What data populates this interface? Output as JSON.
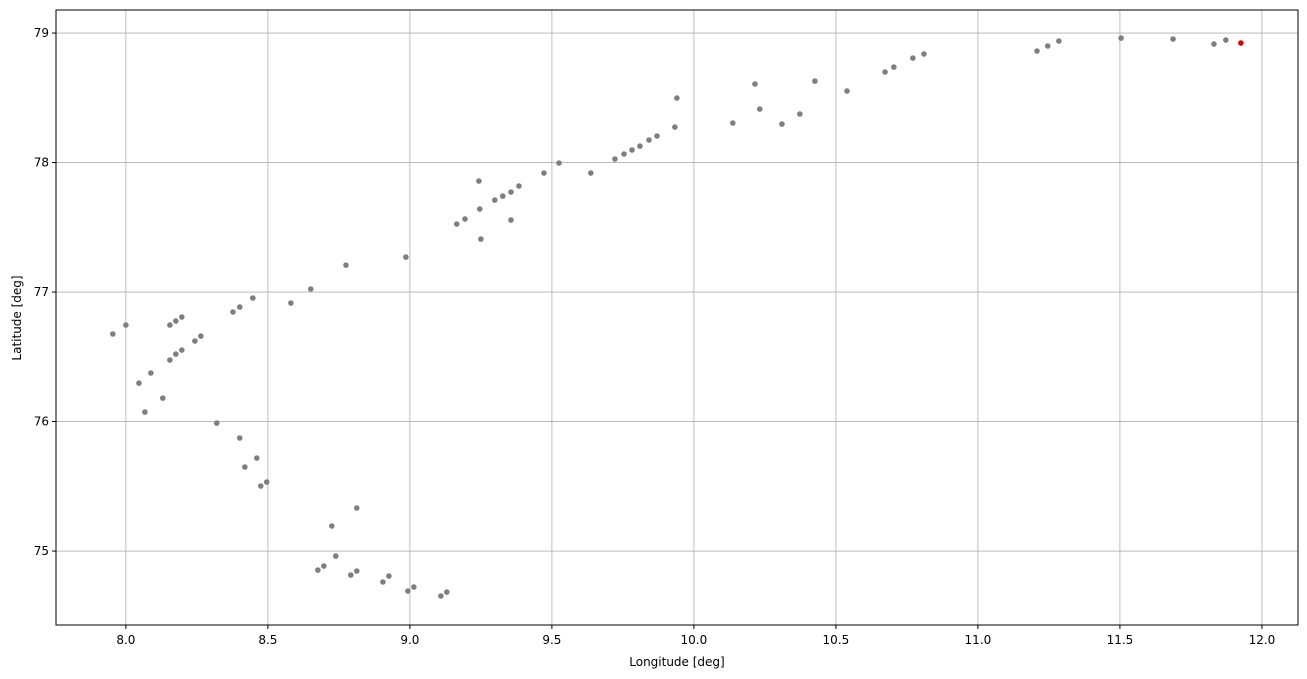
{
  "chart_data": {
    "type": "scatter",
    "xlabel": "Longitude [deg]",
    "ylabel": "Latitude [deg]",
    "xlim": [
      7.754,
      12.127
    ],
    "ylim": [
      74.429,
      79.178
    ],
    "xticks": [
      {
        "value": 8,
        "label": "8.0"
      },
      8.5,
      {
        "value": 9,
        "label": "9.0"
      },
      9.5,
      {
        "value": 10,
        "label": "10.0"
      },
      10.5,
      {
        "value": 11,
        "label": "11.0"
      },
      11.5,
      {
        "value": 12,
        "label": "12.0"
      }
    ],
    "yticks": [
      75,
      76,
      77,
      78,
      79
    ],
    "grid": true,
    "series": [
      {
        "color": "#7f7f7f",
        "x": [
          7.954,
          8.0,
          8.046,
          8.067,
          8.088,
          8.13,
          8.155,
          8.176,
          8.197,
          8.155,
          8.176,
          8.197,
          8.243,
          8.264,
          8.32,
          8.377,
          8.401,
          8.401,
          8.419,
          8.447,
          8.461,
          8.475,
          8.496,
          8.581,
          8.651,
          8.775,
          8.676,
          8.697,
          8.725,
          8.739,
          8.792,
          8.813,
          8.813,
          8.905,
          8.926,
          8.993,
          9.014,
          9.109,
          9.13,
          8.986,
          9.165,
          9.194,
          9.243,
          9.246,
          9.25,
          9.299,
          9.327,
          9.356,
          9.356,
          9.384,
          9.472,
          9.525,
          9.637,
          9.722,
          9.754,
          9.782,
          9.81,
          9.842,
          9.87,
          9.933,
          9.94,
          10.137,
          10.215,
          10.232,
          10.31,
          10.373,
          10.426,
          10.539,
          10.673,
          10.704,
          10.771,
          10.81,
          11.208,
          11.246,
          11.285,
          11.504,
          11.687,
          11.831,
          11.873
        ],
        "values": [
          76.676,
          76.745,
          76.297,
          76.073,
          76.375,
          76.181,
          76.745,
          76.776,
          76.807,
          76.475,
          76.521,
          76.552,
          76.622,
          76.66,
          75.988,
          76.846,
          75.873,
          76.884,
          75.649,
          76.954,
          75.718,
          75.502,
          75.533,
          76.915,
          77.023,
          77.208,
          74.853,
          74.884,
          75.193,
          74.961,
          74.815,
          74.846,
          75.332,
          74.761,
          74.807,
          74.691,
          74.722,
          74.653,
          74.683,
          77.27,
          77.525,
          77.564,
          77.857,
          77.641,
          77.409,
          77.71,
          77.741,
          77.772,
          77.556,
          77.819,
          77.919,
          77.996,
          77.919,
          78.027,
          78.066,
          78.097,
          78.127,
          78.174,
          78.205,
          78.274,
          78.498,
          78.305,
          78.606,
          78.413,
          78.297,
          78.375,
          78.629,
          78.552,
          78.699,
          78.737,
          78.807,
          78.838,
          78.861,
          78.9,
          78.938,
          78.961,
          78.954,
          78.915,
          78.946
        ]
      },
      {
        "color": "#e00000",
        "x": [
          11.926
        ],
        "values": [
          78.923
        ]
      }
    ]
  }
}
